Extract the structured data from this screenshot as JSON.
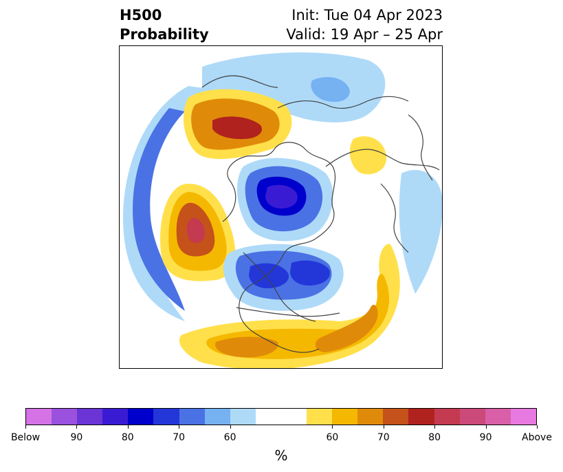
{
  "title": {
    "left_line1": "H500",
    "left_line2": "Probability",
    "right_line1": "Init: Tue 04 Apr 2023",
    "right_line2": "Valid: 19 Apr – 25 Apr"
  },
  "colorbar": {
    "unit": "%",
    "colors": [
      "#d472e6",
      "#9a52de",
      "#6a34d6",
      "#3a1bd4",
      "#0000cc",
      "#2337d9",
      "#4a72e4",
      "#76b1f2",
      "#aedaf8",
      "#ffffff",
      "#ffffff",
      "#ffe04a",
      "#f5b800",
      "#e08a0a",
      "#c4521a",
      "#b0221e",
      "#c43a50",
      "#cc4a7a",
      "#d85fa8",
      "#e879e0"
    ],
    "tick_labels": [
      "Below",
      "90",
      "80",
      "70",
      "60",
      "60",
      "70",
      "80",
      "90",
      "Above"
    ]
  },
  "colors": {
    "below_light": "#aedaf8",
    "below_mid": "#4a72e4",
    "below_strong": "#0000cc",
    "above_light": "#ffe04a",
    "above_mid": "#e08a0a",
    "above_strong": "#b0221e"
  }
}
